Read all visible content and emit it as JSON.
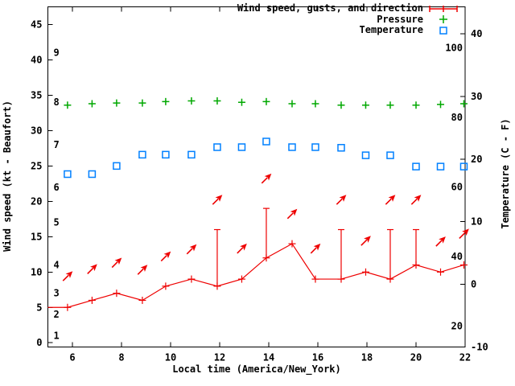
{
  "colors": {
    "wind": "#ee0000",
    "pressure": "#00a800",
    "temperature": "#0080ff",
    "axis": "#000000",
    "background": "#ffffff"
  },
  "legend": {
    "wind_label": "Wind speed, gusts, and direction",
    "pressure_label": "Pressure",
    "temperature_label": "Temperature"
  },
  "chart_data": {
    "type": "line",
    "title": "",
    "xlabel": "Local time (America/New_York)",
    "ylabel_left": "Wind speed (kt - Beaufort)",
    "ylabel_right": "Temperature (C - F)",
    "grid": false,
    "legend_position": "top-right-inside",
    "x_range": [
      5,
      22
    ],
    "x_ticks": [
      6,
      8,
      10,
      12,
      14,
      16,
      18,
      20,
      22
    ],
    "left_axis": {
      "unit": "kt",
      "range": [
        -0.6,
        47.5
      ],
      "ticks": [
        0,
        5,
        10,
        15,
        20,
        25,
        30,
        35,
        40,
        45
      ]
    },
    "beaufort_labels": [
      {
        "label": "1",
        "kt": 1
      },
      {
        "label": "2",
        "kt": 4
      },
      {
        "label": "3",
        "kt": 7
      },
      {
        "label": "4",
        "kt": 11
      },
      {
        "label": "5",
        "kt": 17
      },
      {
        "label": "6",
        "kt": 22
      },
      {
        "label": "7",
        "kt": 28
      },
      {
        "label": "8",
        "kt": 34
      },
      {
        "label": "9",
        "kt": 41
      }
    ],
    "right_axis": {
      "unit": "C",
      "range": [
        -10,
        44.3
      ],
      "ticks": [
        -10,
        0,
        10,
        20,
        30,
        40
      ]
    },
    "fahrenheit_labels": [
      20,
      40,
      60,
      80,
      100
    ],
    "x": [
      5.8,
      6.8,
      7.8,
      8.85,
      9.8,
      10.85,
      11.9,
      12.9,
      13.9,
      14.95,
      15.9,
      16.95,
      17.95,
      18.95,
      20.0,
      21.0,
      21.95
    ],
    "series": [
      {
        "name": "Wind speed (kt)",
        "style": "line-plus-markers",
        "color_key": "wind",
        "axis": "left",
        "line_start": {
          "x": 5,
          "value": 5
        },
        "values": [
          5,
          6,
          7,
          6,
          8,
          9,
          8,
          9,
          12,
          14,
          9,
          9,
          10,
          9,
          11,
          10,
          11
        ]
      },
      {
        "name": "Wind gusts (kt)",
        "style": "vertical-spikes",
        "color_key": "wind",
        "axis": "left",
        "values": [
          null,
          null,
          null,
          null,
          null,
          null,
          16,
          null,
          19,
          null,
          null,
          16,
          null,
          16,
          16,
          null,
          null
        ]
      },
      {
        "name": "Wind direction (arrows, NE = from southwest)",
        "style": "arrows",
        "color_key": "wind",
        "axis": "left",
        "direction_deg": 45,
        "values": [
          9.4,
          10.4,
          11.3,
          10.3,
          12.2,
          13.2,
          20.2,
          13.3,
          23.2,
          18.2,
          13.3,
          20.2,
          14.4,
          20.2,
          20.2,
          14.3,
          15.4
        ]
      },
      {
        "name": "Pressure (unlabeled scale, plotted in left-axis units)",
        "style": "plus-markers",
        "color_key": "pressure",
        "axis": "left",
        "values": [
          33.6,
          33.8,
          33.9,
          33.9,
          34.1,
          34.2,
          34.2,
          34.0,
          34.1,
          33.8,
          33.8,
          33.6,
          33.6,
          33.6,
          33.6,
          33.7,
          33.8
        ]
      },
      {
        "name": "Temperature (C)",
        "style": "square-markers",
        "color_key": "temperature",
        "axis": "right",
        "values": [
          17.6,
          17.6,
          18.9,
          20.7,
          20.7,
          20.7,
          21.9,
          21.9,
          22.8,
          21.9,
          21.9,
          21.8,
          20.6,
          20.6,
          18.8,
          18.8,
          18.8
        ]
      }
    ]
  }
}
